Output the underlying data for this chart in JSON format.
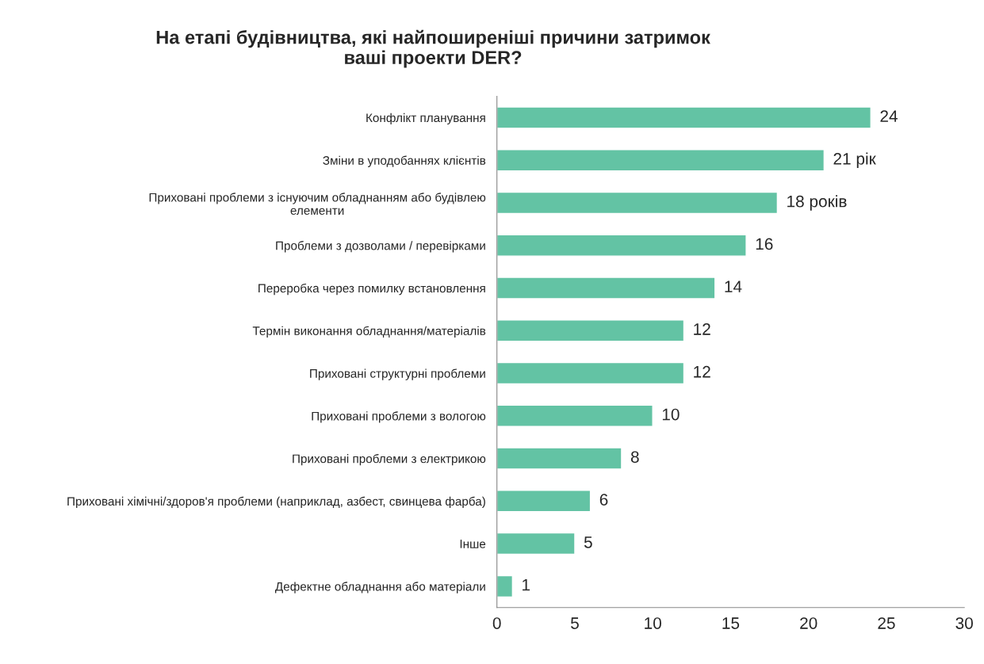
{
  "chart_data": {
    "type": "bar",
    "orientation": "horizontal",
    "title": "На етапі будівництва, які найпоширеніші причини затримок\nваші проекти DER?",
    "categories": [
      "Конфлікт планування",
      "Зміни в уподобаннях клієнтів",
      "Приховані проблеми з існуючим обладнанням або будівлею\nелементи",
      "Проблеми з дозволами / перевірками",
      "Переробка через помилку встановлення",
      "Термін виконання обладнання/матеріалів",
      "Приховані структурні проблеми",
      "Приховані проблеми з вологою",
      "Приховані проблеми з електрикою",
      "Приховані хімічні/здоров'я проблеми (наприклад, азбест, свинцева фарба)",
      "Інше",
      "Дефектне обладнання або матеріали"
    ],
    "values": [
      24,
      21,
      18,
      16,
      14,
      12,
      12,
      10,
      8,
      6,
      5,
      1
    ],
    "value_labels": [
      "24",
      "21 рік",
      "18 років",
      "16",
      "14",
      "12",
      "12",
      "10",
      "8",
      "6",
      "5",
      "1"
    ],
    "color": "#63c3a4",
    "xlim": [
      0,
      30
    ],
    "xticks": [
      0,
      5,
      10,
      15,
      20,
      25,
      30
    ],
    "grid": false,
    "legend": false
  }
}
